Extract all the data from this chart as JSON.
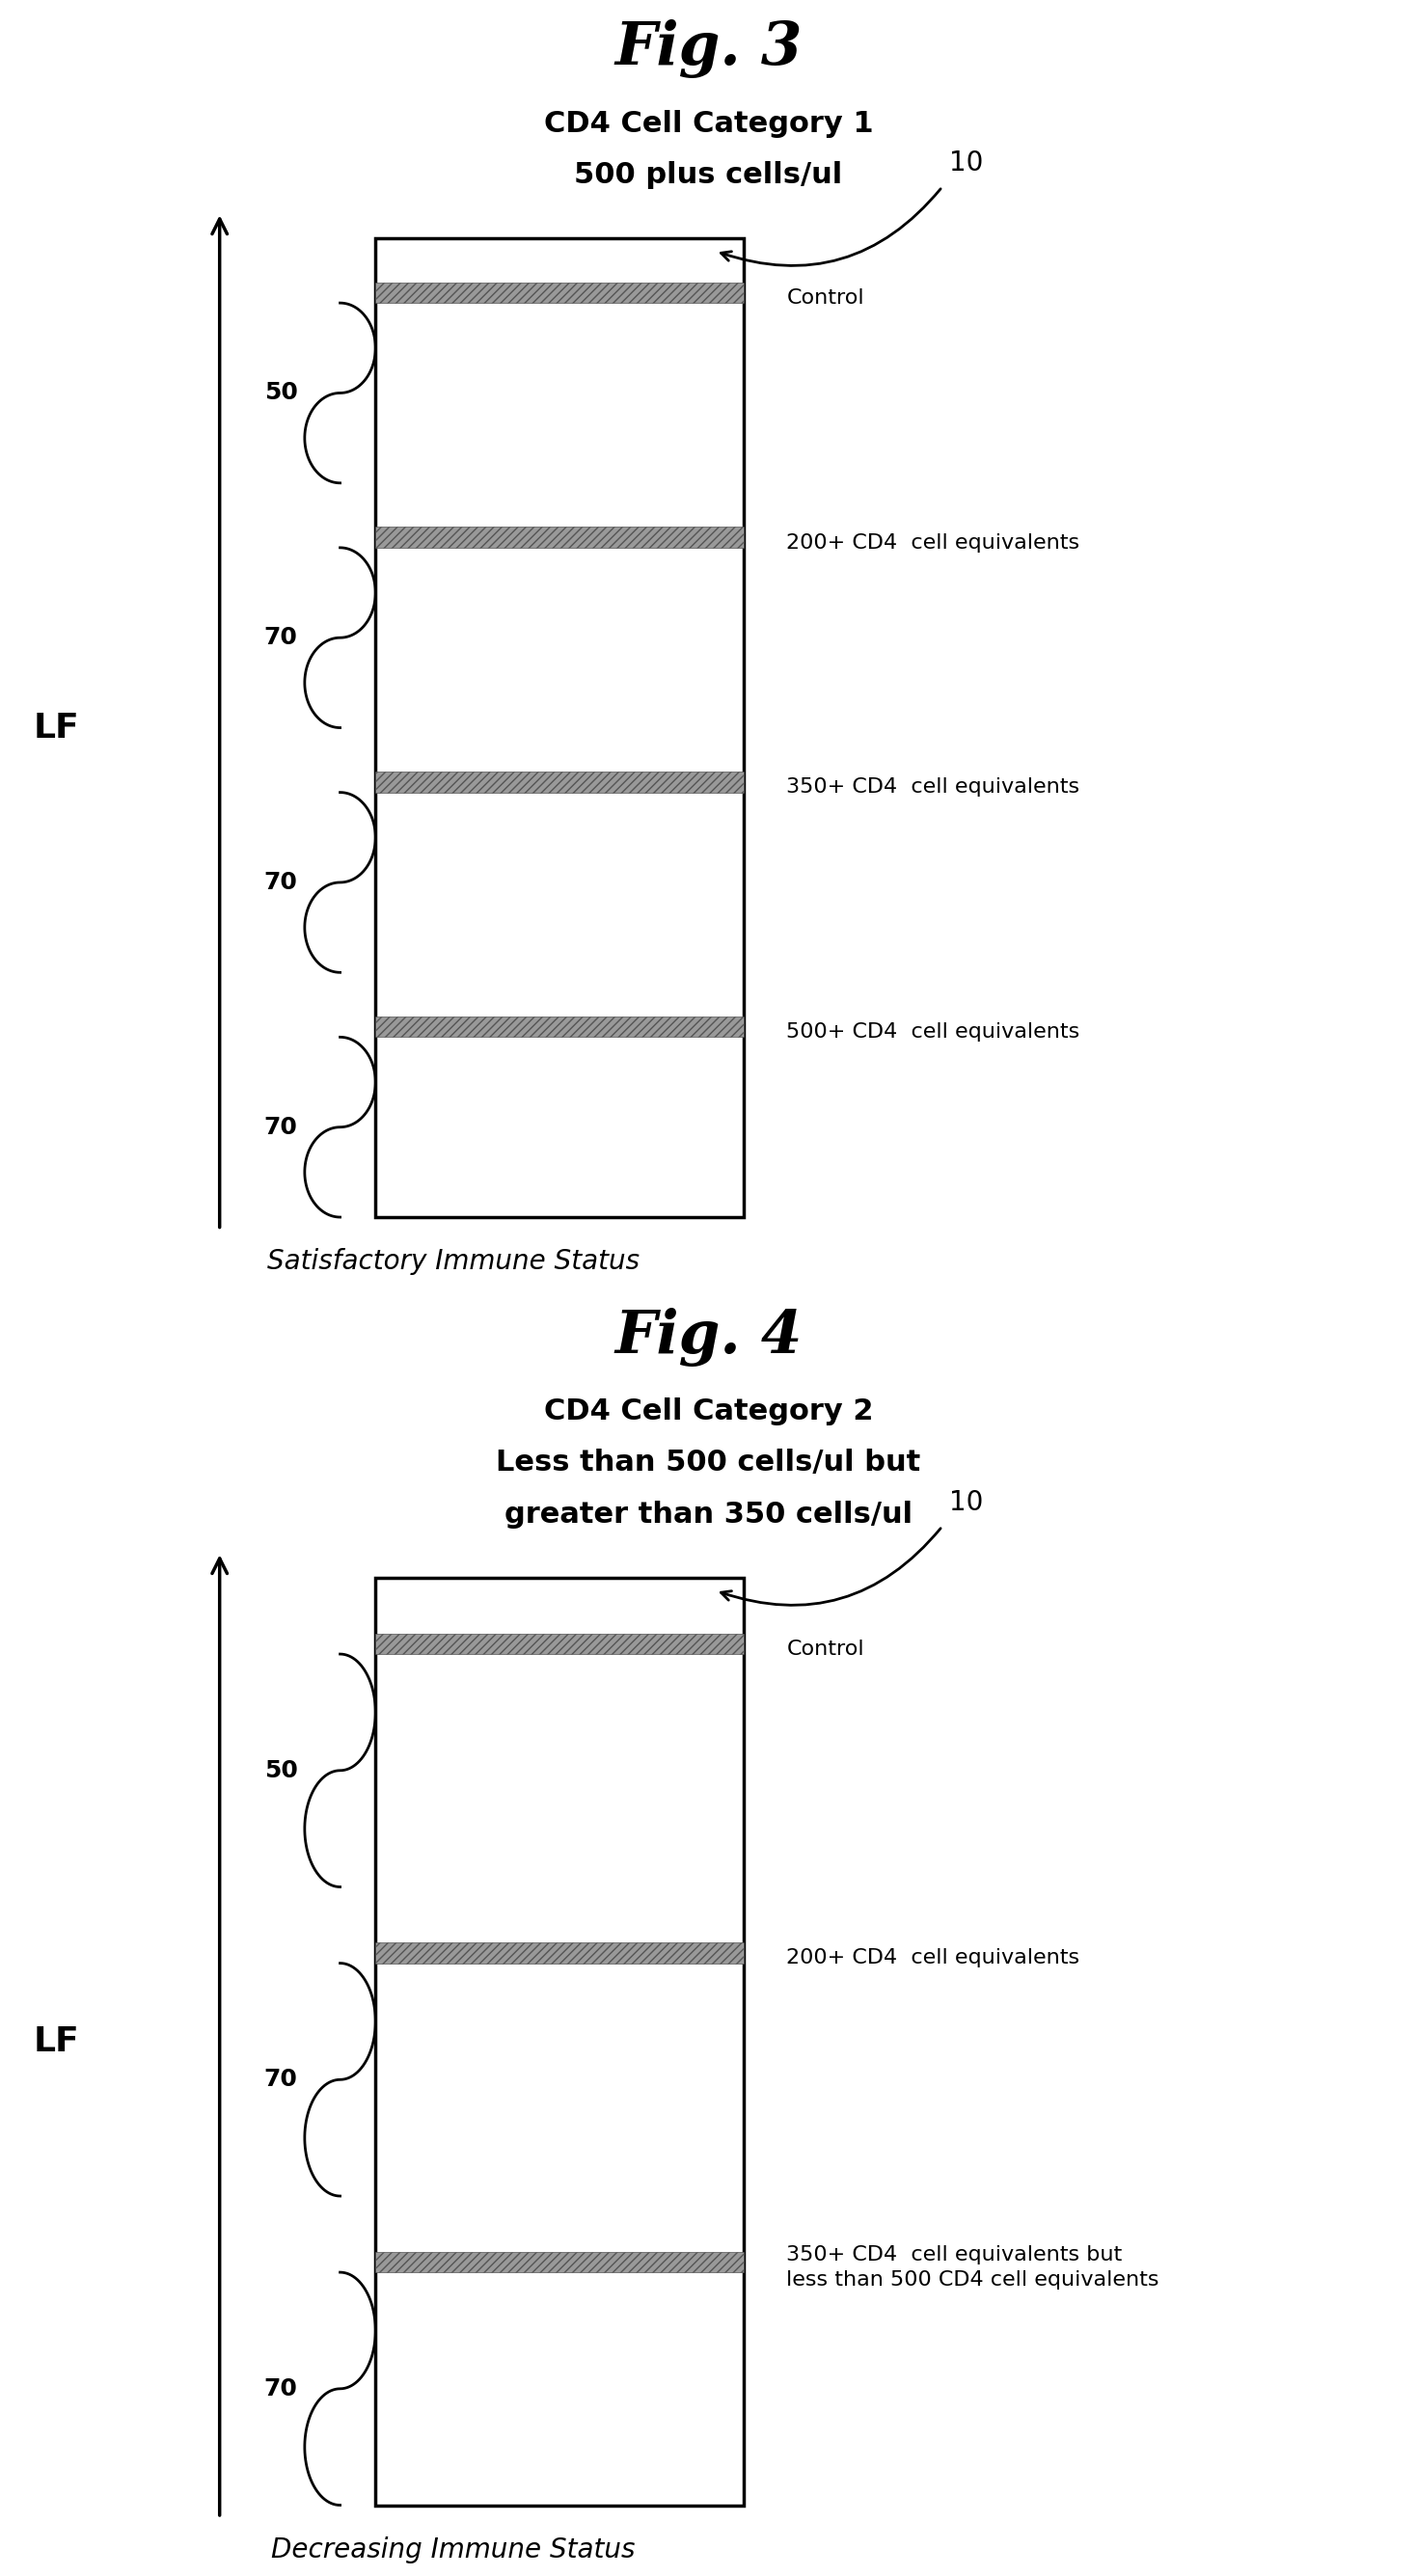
{
  "fig3_title": "Fig. 3",
  "fig3_sub1": "CD4 Cell Category 1",
  "fig3_sub2": "500 plus cells/ul",
  "fig3_caption": "Satisfactory Immune Status",
  "fig3_bands": [
    "Control",
    "200+ CD4  cell equivalents",
    "350+ CD4  cell equivalents",
    "500+ CD4  cell equivalents"
  ],
  "fig3_spacings": [
    "50",
    "70",
    "70",
    "70"
  ],
  "fig3_ref": "10",
  "fig3_has_extra_sub": false,
  "fig4_title": "Fig. 4",
  "fig4_sub1": "CD4 Cell Category 2",
  "fig4_sub2": "Less than 500 cells/ul but",
  "fig4_sub3": "greater than 350 cells/ul",
  "fig4_caption": "Decreasing Immune Status",
  "fig4_bands": [
    "Control",
    "200+ CD4  cell equivalents",
    "350+ CD4  cell equivalents but\nless than 500 CD4 cell equivalents"
  ],
  "fig4_spacings": [
    "50",
    "70",
    "70"
  ],
  "fig4_ref": "10",
  "fig4_has_extra_sub": true,
  "band_hatch_color": "#888888",
  "background": "#ffffff",
  "text_color": "#000000"
}
